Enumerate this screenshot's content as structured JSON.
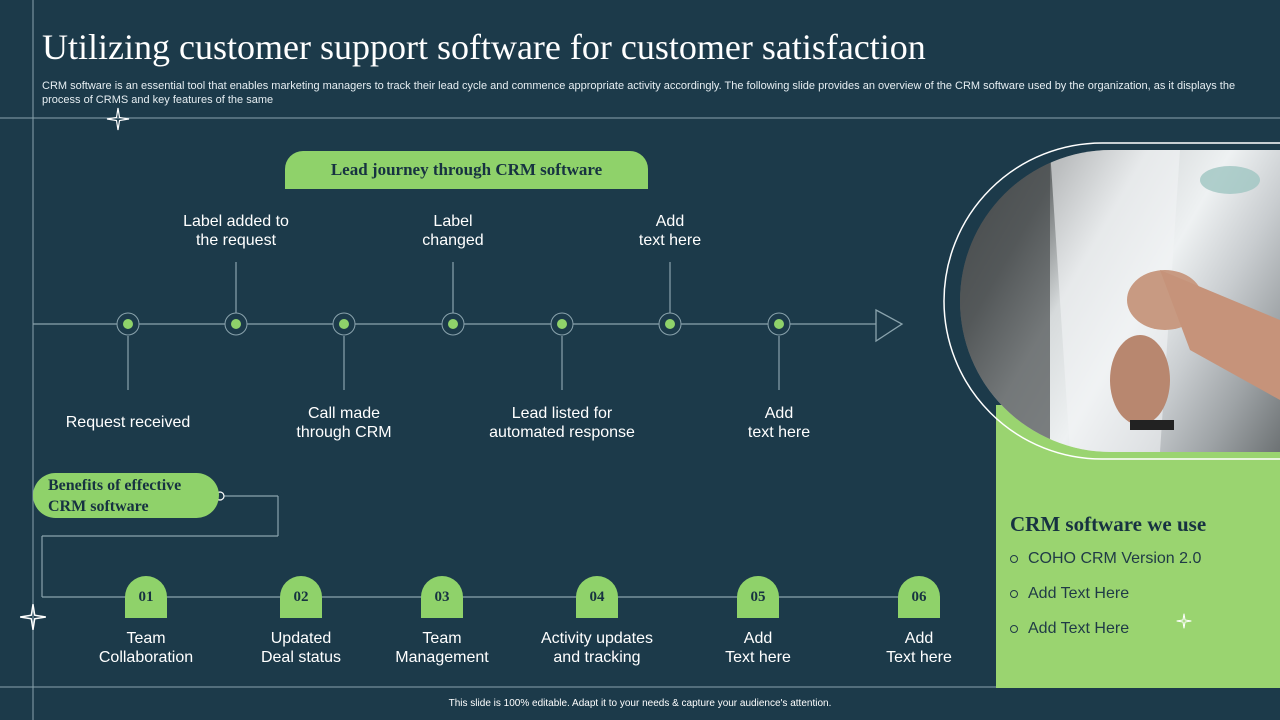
{
  "header": {
    "title": "Utilizing customer support software for customer satisfaction",
    "subtitle": "CRM software is an essential tool that enables marketing managers to track their lead cycle and commence appropriate activity accordingly. The following slide provides an overview of the CRM software used by the organization, as it displays the process of CRMS and key features of the same"
  },
  "lead_journey": {
    "heading": "Lead journey through CRM software",
    "above": [
      {
        "line1": "Label added to",
        "line2": "the request"
      },
      {
        "line1": "Label",
        "line2": "changed"
      },
      {
        "line1": "Add",
        "line2": "text here"
      }
    ],
    "below": [
      {
        "line1": "Request received",
        "line2": ""
      },
      {
        "line1": "Call made",
        "line2": "through CRM"
      },
      {
        "line1": "Lead listed for",
        "line2": "automated response"
      },
      {
        "line1": "Add",
        "line2": "text here"
      }
    ]
  },
  "benefits": {
    "heading_line1": "Benefits of effective",
    "heading_line2": "CRM software",
    "items": [
      {
        "num": "01",
        "line1": "Team",
        "line2": "Collaboration"
      },
      {
        "num": "02",
        "line1": "Updated",
        "line2": "Deal status"
      },
      {
        "num": "03",
        "line1": "Team",
        "line2": "Management"
      },
      {
        "num": "04",
        "line1": "Activity updates",
        "line2": "and tracking"
      },
      {
        "num": "05",
        "line1": "Add",
        "line2": "Text here"
      },
      {
        "num": "06",
        "line1": "Add",
        "line2": "Text here"
      }
    ]
  },
  "crm_panel": {
    "title": "CRM software we use",
    "items": [
      "COHO CRM Version 2.0",
      "Add Text Here",
      "Add Text Here"
    ]
  },
  "footer": {
    "text": "This slide is 100% editable. Adapt it to your needs & capture your audience's attention."
  },
  "colors": {
    "background": "#1c3a4a",
    "accent_green": "#8fd26a",
    "panel_green": "#9ad470",
    "line": "#8aa3ad"
  },
  "icons": [
    "sparkle-icon",
    "arrow-head-icon",
    "timeline-node-icon",
    "bullet-circle-icon"
  ]
}
